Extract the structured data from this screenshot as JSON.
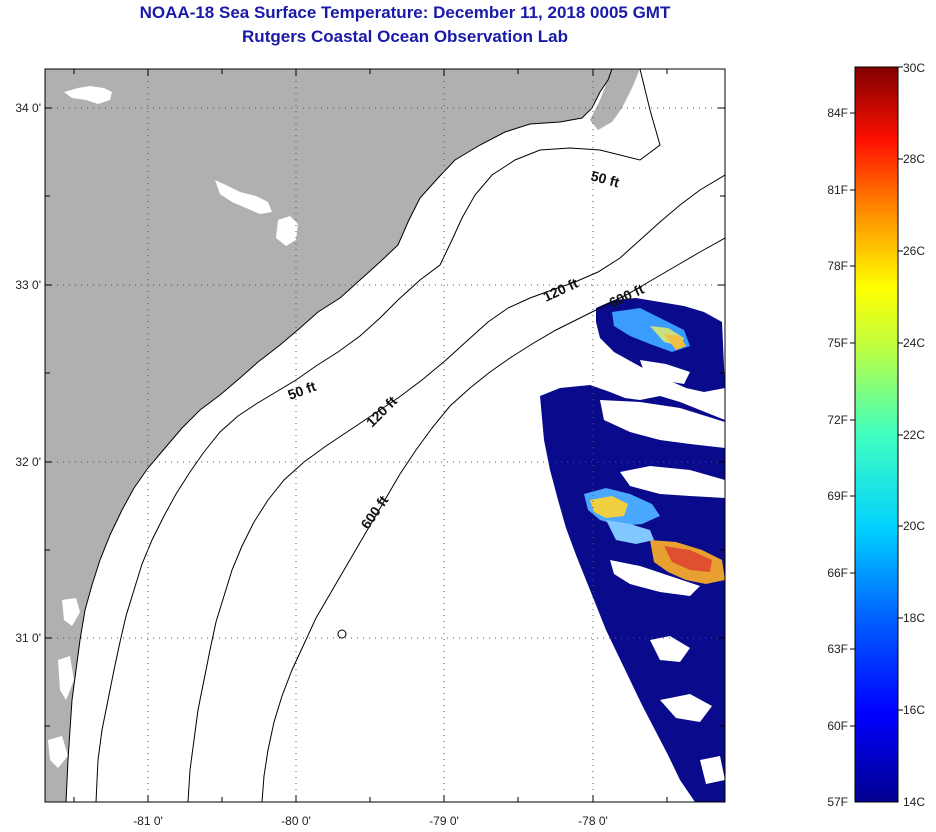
{
  "header": {
    "title_line1": "NOAA-18 Sea Surface Temperature:  December 11, 2018 0005 GMT",
    "title_line2": "Rutgers Coastal Ocean Observation Lab"
  },
  "map": {
    "longitude_ticks": [
      "-81 0'",
      "-80 0'",
      "-79 0'",
      "-78 0'"
    ],
    "latitude_ticks": [
      "34 0'",
      "33 0'",
      "32 0'",
      "31 0'"
    ],
    "contour_labels": [
      "50 ft",
      "50 ft",
      "120 ft",
      "120 ft",
      "600 ft",
      "600 ft"
    ],
    "land_color": "#b0b0b0",
    "cloud_color": "#ffffff",
    "cold_water_color": "#0a0a8c"
  },
  "colorbar": {
    "fahrenheit_labels": [
      "84F",
      "81F",
      "78F",
      "75F",
      "72F",
      "69F",
      "66F",
      "63F",
      "60F",
      "57F"
    ],
    "celsius_labels": [
      "30C",
      "28C",
      "26C",
      "24C",
      "22C",
      "20C",
      "18C",
      "16C",
      "14C"
    ],
    "min_c": 14,
    "max_c": 30,
    "colors": [
      "#00008f",
      "#0000ff",
      "#0080ff",
      "#00ffff",
      "#80ff80",
      "#ffff00",
      "#ff8000",
      "#ff0000",
      "#800000"
    ]
  }
}
